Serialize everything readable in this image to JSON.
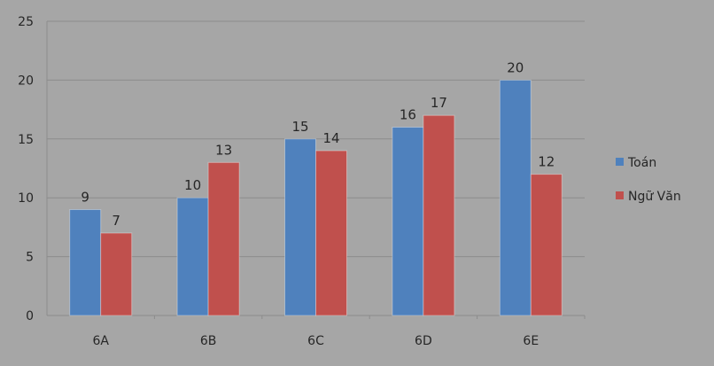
{
  "chart_data": {
    "type": "bar",
    "categories": [
      "6A",
      "6B",
      "6C",
      "6D",
      "6E"
    ],
    "series": [
      {
        "name": "Toán",
        "values": [
          9,
          10,
          15,
          16,
          20
        ],
        "color": "#4f81bd"
      },
      {
        "name": "Ngữ Văn",
        "values": [
          7,
          13,
          14,
          17,
          12
        ],
        "color": "#c0504d"
      }
    ],
    "yticks": [
      0,
      5,
      10,
      15,
      20,
      25
    ],
    "ylim": [
      0,
      25
    ],
    "grid": true,
    "legend_position": "right",
    "title": "",
    "xlabel": "",
    "ylabel": ""
  }
}
